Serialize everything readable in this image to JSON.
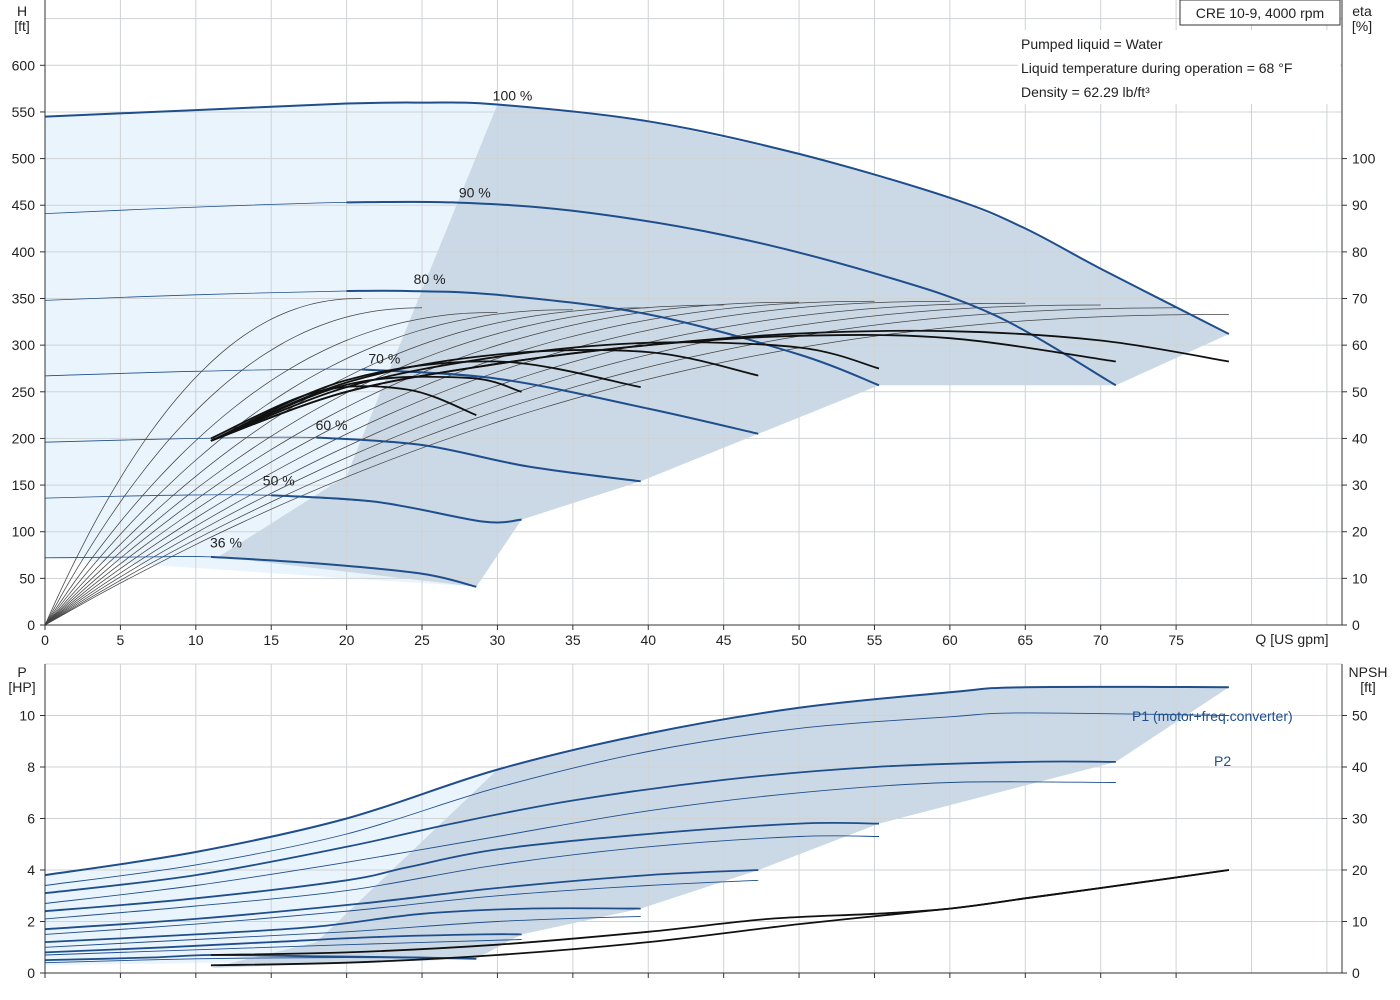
{
  "legend_box": {
    "model": "CRE 10-9, 4000 rpm",
    "pumped_liquid": "Pumped liquid = Water",
    "liquid_temperature": "Liquid temperature during operation = 68 °F",
    "density": "Density = 62.29 lb/ft³"
  },
  "colors": {
    "curve_blue": "#1f4e8c",
    "region_light": "#eaf4fc",
    "region_dark": "#cbd9e6",
    "efficiency": "#111111",
    "grid": "#cfd3d6"
  },
  "chart_data": [
    {
      "type": "line",
      "title": "",
      "xlabel": "Q [US gpm]",
      "ylabel": "H\n[ft]",
      "y2label": "eta\n[%]",
      "xlim": [
        0,
        86
      ],
      "ylim": [
        0,
        670
      ],
      "y2lim": [
        0,
        134
      ],
      "xticks": [
        0,
        5,
        10,
        15,
        20,
        25,
        30,
        35,
        40,
        45,
        50,
        55,
        60,
        65,
        70,
        75
      ],
      "yticks": [
        0,
        50,
        100,
        150,
        200,
        250,
        300,
        350,
        400,
        450,
        500,
        550,
        600
      ],
      "y2ticks": [
        0,
        10,
        20,
        30,
        40,
        50,
        60,
        70,
        80,
        90,
        100
      ],
      "grid": true,
      "speed_curves": [
        {
          "label": "100 %",
          "x": [
            0,
            10,
            20,
            25,
            30,
            40,
            50,
            60,
            65,
            70,
            78.5
          ],
          "y": [
            545,
            552,
            559,
            560,
            558,
            540,
            505,
            458,
            425,
            382,
            312
          ]
        },
        {
          "label": "90 %",
          "x": [
            0,
            10,
            20,
            27,
            35,
            45,
            55,
            63,
            71
          ],
          "y": [
            441,
            448,
            453,
            453,
            444,
            418,
            377,
            332,
            257
          ]
        },
        {
          "label": "80 %",
          "x": [
            0,
            10,
            20,
            24,
            30,
            40,
            50,
            55.3
          ],
          "y": [
            348,
            354,
            358,
            358,
            354,
            333,
            290,
            257
          ]
        },
        {
          "label": "70 %",
          "x": [
            0,
            10,
            21,
            30,
            40,
            47.3
          ],
          "y": [
            267,
            272,
            274,
            264,
            232,
            205
          ]
        },
        {
          "label": "60 %",
          "x": [
            0,
            10,
            18,
            25,
            32,
            39.5
          ],
          "y": [
            196,
            200,
            201,
            193,
            170,
            154
          ]
        },
        {
          "label": "50 %",
          "x": [
            0,
            8,
            15,
            22,
            29,
            31.6
          ],
          "y": [
            136,
            139,
            139,
            132,
            111,
            113
          ]
        },
        {
          "label": "36 %",
          "x": [
            0,
            7,
            11,
            18,
            25,
            28.6
          ],
          "y": [
            72,
            73,
            73,
            66,
            55,
            41
          ]
        }
      ],
      "efficiency_curves": [
        {
          "name": "100 %",
          "x": [
            11,
            20,
            30,
            40,
            50,
            60,
            70,
            78.5
          ],
          "y": [
            39.5,
            50,
            56,
            60,
            62.5,
            63,
            61,
            56.5
          ]
        },
        {
          "name": "90 %",
          "x": [
            11,
            20,
            30,
            40,
            50,
            60,
            71
          ],
          "y": [
            39.5,
            50,
            56,
            60,
            62,
            61.5,
            56.5
          ]
        },
        {
          "name": "80 %",
          "x": [
            11,
            20,
            30,
            40,
            50,
            55.3
          ],
          "y": [
            39.5,
            51,
            57.5,
            60.5,
            59.5,
            55
          ]
        },
        {
          "name": "70 %",
          "x": [
            11,
            20,
            30,
            40,
            47.3
          ],
          "y": [
            39.5,
            52,
            58,
            58.5,
            53.5
          ]
        },
        {
          "name": "60 %",
          "x": [
            11,
            20,
            30,
            39.5
          ],
          "y": [
            39.5,
            52.5,
            56.5,
            51
          ]
        },
        {
          "name": "50 %",
          "x": [
            11,
            20,
            28,
            31.6
          ],
          "y": [
            39.5,
            51.5,
            53,
            50
          ]
        },
        {
          "name": "36 %",
          "x": [
            11,
            18,
            24,
            28.6
          ],
          "y": [
            40,
            50,
            50.5,
            45
          ]
        }
      ]
    },
    {
      "type": "line",
      "title": "",
      "xlabel": "",
      "ylabel": "P\n[HP]",
      "y2label": "NPSH\n[ft]",
      "xlim": [
        0,
        86
      ],
      "ylim": [
        0,
        12
      ],
      "y2lim": [
        0,
        60
      ],
      "yticks": [
        0,
        2,
        4,
        6,
        8,
        10
      ],
      "y2ticks": [
        0,
        10,
        20,
        30,
        40,
        50
      ],
      "grid": true,
      "series_labels": {
        "p1": "P1 (motor+freq.converter)",
        "p2": "P2"
      },
      "p1_curves": [
        {
          "x": [
            0,
            10,
            20,
            30,
            40,
            50,
            60,
            65,
            78.5
          ],
          "y": [
            3.8,
            4.7,
            6.0,
            7.9,
            9.3,
            10.3,
            10.9,
            11.1,
            11.1
          ]
        },
        {
          "x": [
            0,
            10,
            20,
            27,
            35,
            45,
            55,
            65,
            71
          ],
          "y": [
            3.1,
            3.8,
            4.9,
            5.8,
            6.7,
            7.5,
            8.0,
            8.2,
            8.2
          ]
        },
        {
          "x": [
            0,
            10,
            20,
            24,
            30,
            40,
            50,
            55.3
          ],
          "y": [
            2.4,
            2.9,
            3.6,
            4.1,
            4.8,
            5.4,
            5.8,
            5.8
          ]
        },
        {
          "x": [
            0,
            10,
            21,
            30,
            40,
            47.3
          ],
          "y": [
            1.7,
            2.1,
            2.7,
            3.3,
            3.8,
            4.0
          ]
        },
        {
          "x": [
            0,
            10,
            18,
            25,
            32,
            39.5
          ],
          "y": [
            1.2,
            1.5,
            1.8,
            2.3,
            2.5,
            2.5
          ]
        },
        {
          "x": [
            0,
            8,
            15,
            22,
            29,
            31.6
          ],
          "y": [
            0.8,
            1.0,
            1.2,
            1.4,
            1.5,
            1.5
          ]
        },
        {
          "x": [
            0,
            7,
            11,
            18,
            25,
            28.6
          ],
          "y": [
            0.5,
            0.6,
            0.7,
            0.65,
            0.6,
            0.55
          ]
        }
      ],
      "p2_curves": [
        {
          "x": [
            0,
            10,
            20,
            30,
            40,
            50,
            60,
            65,
            78.5
          ],
          "y": [
            3.4,
            4.2,
            5.4,
            7.2,
            8.6,
            9.5,
            9.95,
            10.1,
            10.0
          ]
        },
        {
          "x": [
            0,
            10,
            20,
            30,
            40,
            50,
            60,
            71
          ],
          "y": [
            2.7,
            3.4,
            4.3,
            5.3,
            6.3,
            7.0,
            7.4,
            7.4
          ]
        },
        {
          "x": [
            0,
            10,
            20,
            30,
            40,
            50,
            55.3
          ],
          "y": [
            2.1,
            2.6,
            3.2,
            4.2,
            4.9,
            5.3,
            5.3
          ]
        },
        {
          "x": [
            0,
            10,
            20,
            30,
            40,
            47.3
          ],
          "y": [
            1.5,
            1.9,
            2.4,
            3.0,
            3.4,
            3.6
          ]
        },
        {
          "x": [
            0,
            10,
            20,
            30,
            39.5
          ],
          "y": [
            1.0,
            1.3,
            1.6,
            2.0,
            2.2
          ]
        },
        {
          "x": [
            0,
            10,
            20,
            31.6
          ],
          "y": [
            0.7,
            0.9,
            1.1,
            1.3
          ]
        },
        {
          "x": [
            0,
            10,
            20,
            28.6
          ],
          "y": [
            0.4,
            0.55,
            0.6,
            0.55
          ]
        }
      ],
      "npsh_curves": [
        {
          "x": [
            11,
            20,
            30,
            40,
            50,
            60,
            65,
            70,
            78.5
          ],
          "y": [
            1.5,
            2,
            3.5,
            6,
            9.5,
            12.5,
            14.5,
            16.5,
            20
          ]
        },
        {
          "x": [
            11,
            20,
            30,
            40,
            48,
            55,
            60,
            65,
            70,
            78.5
          ],
          "y": [
            3.5,
            4,
            5.5,
            8,
            10.5,
            11.5,
            12.5,
            14.5,
            16.5,
            20
          ]
        }
      ]
    }
  ]
}
